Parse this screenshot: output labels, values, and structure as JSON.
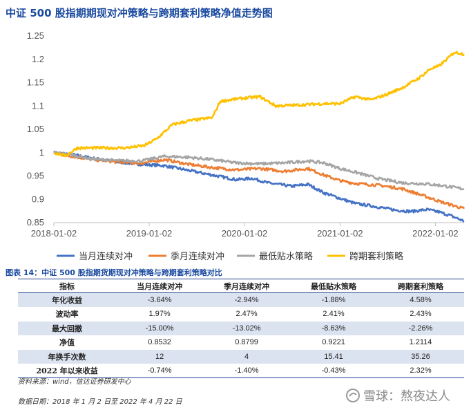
{
  "title": "中证 500 股指期期现对冲策略与跨期套利策略净值走势图",
  "chart_data": {
    "type": "line",
    "title": "中证 500 股指期期现对冲策略与跨期套利策略净值走势图",
    "x_ticks": [
      "2018-01-02",
      "2019-01-02",
      "2020-01-02",
      "2021-01-02",
      "2022-01-02"
    ],
    "x_range": [
      "2018-01-02",
      "2022-04-22"
    ],
    "ylim": [
      0.85,
      1.25
    ],
    "y_ticks": [
      "0.85",
      "0.9",
      "0.95",
      "1",
      "1.05",
      "1.1",
      "1.15",
      "1.2",
      "1.25"
    ],
    "grid": false,
    "legend_position": "bottom",
    "series": [
      {
        "name": "当月连续对冲",
        "color": "#4472c4",
        "points": [
          [
            "2018-01-02",
            1.0
          ],
          [
            "2018-03-01",
            0.997
          ],
          [
            "2018-06-01",
            0.988
          ],
          [
            "2018-09-01",
            0.98
          ],
          [
            "2018-12-01",
            0.975
          ],
          [
            "2019-03-01",
            0.972
          ],
          [
            "2019-06-01",
            0.962
          ],
          [
            "2019-09-01",
            0.952
          ],
          [
            "2019-12-01",
            0.942
          ],
          [
            "2020-02-01",
            0.945
          ],
          [
            "2020-04-01",
            0.935
          ],
          [
            "2020-07-01",
            0.928
          ],
          [
            "2020-09-01",
            0.932
          ],
          [
            "2020-11-01",
            0.914
          ],
          [
            "2021-01-02",
            0.902
          ],
          [
            "2021-03-01",
            0.891
          ],
          [
            "2021-05-01",
            0.886
          ],
          [
            "2021-08-01",
            0.877
          ],
          [
            "2021-10-01",
            0.874
          ],
          [
            "2021-12-01",
            0.878
          ],
          [
            "2022-01-15",
            0.873
          ],
          [
            "2022-03-01",
            0.865
          ],
          [
            "2022-04-22",
            0.8532
          ]
        ]
      },
      {
        "name": "季月连续对冲",
        "color": "#ed7d31",
        "points": [
          [
            "2018-01-02",
            1.0
          ],
          [
            "2018-03-01",
            0.993
          ],
          [
            "2018-06-01",
            0.985
          ],
          [
            "2018-09-01",
            0.98
          ],
          [
            "2018-12-01",
            0.977
          ],
          [
            "2019-03-01",
            0.985
          ],
          [
            "2019-06-01",
            0.975
          ],
          [
            "2019-09-01",
            0.968
          ],
          [
            "2019-12-01",
            0.963
          ],
          [
            "2020-03-01",
            0.966
          ],
          [
            "2020-06-01",
            0.96
          ],
          [
            "2020-09-01",
            0.966
          ],
          [
            "2020-11-01",
            0.952
          ],
          [
            "2021-01-02",
            0.94
          ],
          [
            "2021-03-01",
            0.934
          ],
          [
            "2021-06-01",
            0.93
          ],
          [
            "2021-09-01",
            0.922
          ],
          [
            "2021-12-01",
            0.905
          ],
          [
            "2022-02-01",
            0.893
          ],
          [
            "2022-04-22",
            0.8799
          ]
        ]
      },
      {
        "name": "最低贴水策略",
        "color": "#a5a5a5",
        "points": [
          [
            "2018-01-02",
            1.0
          ],
          [
            "2018-03-01",
            0.996
          ],
          [
            "2018-06-01",
            0.986
          ],
          [
            "2018-09-01",
            0.983
          ],
          [
            "2018-12-01",
            0.982
          ],
          [
            "2019-03-01",
            0.992
          ],
          [
            "2019-06-01",
            0.99
          ],
          [
            "2019-09-01",
            0.985
          ],
          [
            "2019-12-01",
            0.978
          ],
          [
            "2020-03-01",
            0.976
          ],
          [
            "2020-06-01",
            0.978
          ],
          [
            "2020-09-01",
            0.982
          ],
          [
            "2020-11-01",
            0.978
          ],
          [
            "2021-01-02",
            0.966
          ],
          [
            "2021-03-01",
            0.958
          ],
          [
            "2021-06-01",
            0.944
          ],
          [
            "2021-09-01",
            0.935
          ],
          [
            "2021-12-01",
            0.933
          ],
          [
            "2022-02-01",
            0.929
          ],
          [
            "2022-04-22",
            0.9221
          ]
        ]
      },
      {
        "name": "跨期套利策略",
        "color": "#ffc000",
        "points": [
          [
            "2018-01-02",
            1.0
          ],
          [
            "2018-02-15",
            0.993
          ],
          [
            "2018-04-01",
            1.01
          ],
          [
            "2018-07-01",
            1.01
          ],
          [
            "2018-10-01",
            1.01
          ],
          [
            "2018-12-15",
            1.015
          ],
          [
            "2019-02-01",
            1.03
          ],
          [
            "2019-04-01",
            1.06
          ],
          [
            "2019-06-01",
            1.068
          ],
          [
            "2019-09-01",
            1.075
          ],
          [
            "2019-10-01",
            1.11
          ],
          [
            "2019-12-01",
            1.115
          ],
          [
            "2020-03-01",
            1.12
          ],
          [
            "2020-05-01",
            1.1
          ],
          [
            "2020-08-01",
            1.102
          ],
          [
            "2020-11-01",
            1.105
          ],
          [
            "2021-01-02",
            1.105
          ],
          [
            "2021-03-01",
            1.12
          ],
          [
            "2021-05-01",
            1.113
          ],
          [
            "2021-07-01",
            1.125
          ],
          [
            "2021-09-01",
            1.14
          ],
          [
            "2021-11-01",
            1.16
          ],
          [
            "2021-12-15",
            1.18
          ],
          [
            "2022-01-15",
            1.185
          ],
          [
            "2022-02-15",
            1.2
          ],
          [
            "2022-03-15",
            1.215
          ],
          [
            "2022-04-22",
            1.2114
          ]
        ]
      }
    ]
  },
  "table": {
    "title": "图表 14：中证 500 股指期货期现对冲策略与跨期套利策略对比",
    "headers": [
      "指标",
      "当月连续对冲",
      "季月连续对冲",
      "最低贴水策略",
      "跨期套利策略"
    ],
    "rows": [
      [
        "年化收益",
        "-3.64%",
        "-2.94%",
        "-1.88%",
        "4.58%"
      ],
      [
        "波动率",
        "1.97%",
        "2.47%",
        "2.41%",
        "2.43%"
      ],
      [
        "最大回撤",
        "-15.00%",
        "-13.02%",
        "-8.63%",
        "-2.26%"
      ],
      [
        "净值",
        "0.8532",
        "0.8799",
        "0.9221",
        "1.2114"
      ],
      [
        "年换手次数",
        "12",
        "4",
        "15.41",
        "35.26"
      ],
      [
        "2022 年以来收益",
        "-0.74%",
        "-1.40%",
        "-0.43%",
        "2.32%"
      ]
    ]
  },
  "source": "资料来源：wind，信达证券研发中心",
  "date_note": "数据日期：2018 年 1 月 2 日至 2022 年 4 月 22 日",
  "watermark": "雪球：熬夜达人"
}
